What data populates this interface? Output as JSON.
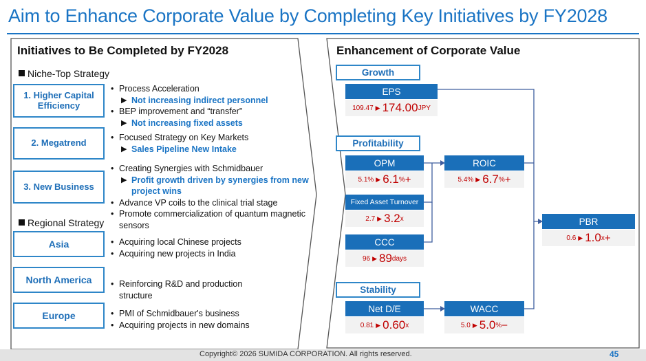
{
  "title": "Aim to Enhance Corporate Value by Completing Key Initiatives by FY2028",
  "left": {
    "heading": "Initiatives to Be Completed by FY2028",
    "niche_section": "Niche-Top Strategy",
    "regional_section": "Regional Strategy",
    "niche_items": [
      {
        "label": "1. Higher Capital Efficiency",
        "lines": [
          {
            "type": "bullet",
            "text": "Process Acceleration"
          },
          {
            "type": "sub",
            "text": "Not increasing indirect personnel"
          },
          {
            "type": "bullet",
            "text": "BEP improvement and “transfer”"
          },
          {
            "type": "sub",
            "text": "Not increasing fixed assets"
          }
        ]
      },
      {
        "label": "2. Megatrend",
        "lines": [
          {
            "type": "bullet",
            "text": "Focused Strategy on Key Markets"
          },
          {
            "type": "sub",
            "text": "Sales Pipeline New Intake"
          }
        ]
      },
      {
        "label": "3. New Business",
        "lines": [
          {
            "type": "bullet",
            "text": "Creating Synergies with Schmidbauer"
          },
          {
            "type": "sub",
            "text": "Profit growth driven by synergies from new"
          },
          {
            "type": "subcont",
            "text": "project wins"
          },
          {
            "type": "bullet",
            "text": "Advance VP coils to the clinical trial stage"
          },
          {
            "type": "bullet",
            "text": "Promote commercialization of quantum magnetic"
          },
          {
            "type": "cont",
            "text": "sensors"
          }
        ]
      }
    ],
    "regional_items": [
      {
        "label": "Asia",
        "lines": [
          {
            "type": "bullet",
            "text": "Acquiring local Chinese projects"
          },
          {
            "type": "bullet",
            "text": "Acquiring new projects in India"
          }
        ]
      },
      {
        "label": "North America",
        "lines": [
          {
            "type": "bullet",
            "text": "Reinforcing R&D and production"
          },
          {
            "type": "cont",
            "text": "structure"
          }
        ]
      },
      {
        "label": "Europe",
        "lines": [
          {
            "type": "bullet",
            "text": "PMI of Schmidbauer's business"
          },
          {
            "type": "bullet",
            "text": "Acquiring projects in new domains"
          }
        ]
      }
    ]
  },
  "right": {
    "heading": "Enhancement of Corporate Value",
    "categories": {
      "growth": "Growth",
      "profitability": "Profitability",
      "stability": "Stability"
    },
    "metrics": {
      "eps": {
        "label": "EPS",
        "from": "109.47",
        "to": "174.00",
        "unit": " JPY",
        "suffix": ""
      },
      "opm": {
        "label": "OPM",
        "from": "5.1%",
        "to": "6.1",
        "unit": "%",
        "suffix": "+"
      },
      "fat": {
        "label": "Fixed Asset Turnover",
        "from": "2.7",
        "to": "3.2",
        "unit": "x",
        "suffix": ""
      },
      "ccc": {
        "label": "CCC",
        "from": "96",
        "to": "89",
        "unit": "days",
        "suffix": ""
      },
      "roic": {
        "label": "ROIC",
        "from": "5.4%",
        "to": "6.7",
        "unit": "%",
        "suffix": "+"
      },
      "pbr": {
        "label": "PBR",
        "from": "0.6",
        "to": "1.0",
        "unit": "x",
        "suffix": "+"
      },
      "nde": {
        "label": "Net D/E",
        "from": "0.81",
        "to": "0.60",
        "unit": "x",
        "suffix": ""
      },
      "wacc": {
        "label": "WACC",
        "from": "5.0",
        "to": "5.0",
        "unit": "%",
        "suffix": "−"
      }
    },
    "arrow_glyph": "▶"
  },
  "footer": {
    "copyright": "Copyright© 2026 SUMIDA CORPORATION. All rights reserved.",
    "page": "45"
  },
  "colors": {
    "accent": "#1a74c4",
    "header_fill": "#1a6fb9",
    "value_red": "#c00000"
  }
}
